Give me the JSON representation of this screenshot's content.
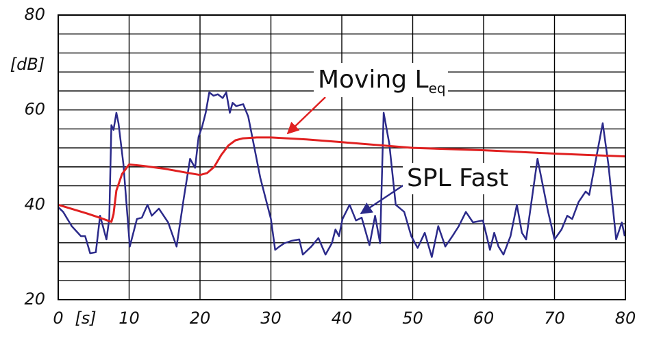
{
  "chart_data": {
    "type": "line",
    "xlabel": "[s]",
    "ylabel": "[dB]",
    "xlim": [
      0,
      80
    ],
    "ylim": [
      20,
      80
    ],
    "xticks": [
      0,
      10,
      20,
      30,
      40,
      50,
      60,
      70,
      80
    ],
    "yticks": [
      20,
      40,
      60,
      80
    ],
    "ygrid": [
      20,
      24,
      28,
      32,
      36,
      40,
      44,
      48,
      52,
      56,
      60,
      64,
      68,
      72,
      76,
      80
    ],
    "grid": true,
    "annotations": [
      {
        "text": "Moving L",
        "subscript": "eq",
        "color": "#e02020"
      },
      {
        "text": "SPL Fast",
        "color": "#2b2a8a"
      }
    ],
    "series": [
      {
        "name": "SPL Fast",
        "color": "#2b2a8a",
        "x": [
          0,
          0.7,
          1.9,
          3.2,
          3.8,
          4.5,
          5.3,
          5.9,
          6.3,
          6.8,
          7.2,
          7.5,
          7.8,
          8.2,
          8.5,
          9.2,
          10.1,
          11.1,
          11.8,
          12.6,
          13.2,
          14.2,
          15.5,
          16.7,
          17.7,
          18.6,
          19.3,
          19.8,
          20.3,
          20.8,
          21.3,
          21.9,
          22.5,
          23.2,
          23.7,
          24.2,
          24.6,
          25.1,
          26.1,
          26.8,
          28.5,
          30,
          30.6,
          31.2,
          31.9,
          32.9,
          34,
          34.5,
          35.7,
          36.7,
          37.7,
          38.6,
          39.1,
          39.6,
          40.1,
          41.1,
          42,
          42.8,
          43.9,
          44.7,
          45.4,
          45.9,
          46.7,
          47.6,
          48.8,
          49.8,
          50.7,
          51.7,
          52.7,
          53.6,
          54.6,
          55.6,
          56.5,
          57.5,
          58.5,
          59.9,
          60.9,
          61.5,
          62.1,
          62.8,
          63.8,
          64.7,
          65.4,
          66,
          67.6,
          69.1,
          70,
          71,
          71.8,
          72.5,
          73.4,
          74.4,
          74.9,
          76.8,
          77.6,
          78.7,
          79.5,
          79.9
        ],
        "values": [
          39.5,
          38.5,
          35.5,
          33.4,
          33.4,
          29.8,
          30,
          37.7,
          35.5,
          32.7,
          37,
          56.8,
          55.8,
          59.4,
          57.2,
          48.5,
          31.2,
          37,
          37.3,
          40,
          37.7,
          39.2,
          36.3,
          31.2,
          41.3,
          49.7,
          47.8,
          54.3,
          56.5,
          59.4,
          63.7,
          63,
          63.3,
          62.5,
          63.7,
          59.4,
          61.5,
          60.8,
          61.2,
          58.6,
          45.7,
          37,
          30.5,
          31.2,
          31.9,
          32.4,
          32.7,
          29.5,
          31.2,
          33,
          29.5,
          31.9,
          34.8,
          33.4,
          37,
          40,
          36.7,
          37.3,
          31.5,
          37.7,
          31.9,
          59.4,
          52.9,
          40,
          38.5,
          33.4,
          30.9,
          34.1,
          29,
          35.5,
          31.2,
          33.4,
          35.5,
          38.5,
          36.3,
          36.7,
          30.5,
          34.1,
          31.2,
          29.5,
          33.4,
          40,
          34.1,
          32.7,
          49.7,
          38.5,
          32.7,
          34.8,
          37.7,
          37,
          40.6,
          42.8,
          42.1,
          57.2,
          48.5,
          32.7,
          36.3,
          33.4
        ]
      },
      {
        "name": "Moving Leq",
        "color": "#e02020",
        "x": [
          0,
          2,
          4,
          6,
          7.5,
          7.8,
          8.2,
          9,
          10,
          12,
          15,
          18,
          20,
          21,
          22,
          23,
          24,
          25,
          26,
          28,
          30,
          35,
          40,
          50,
          60,
          70,
          80
        ],
        "values": [
          40,
          39.1,
          38.2,
          37.2,
          36.4,
          38,
          43,
          46.5,
          48.5,
          48.2,
          47.6,
          46.8,
          46.3,
          46.7,
          48,
          50.5,
          52.5,
          53.6,
          54,
          54.2,
          54.2,
          53.8,
          53.2,
          52,
          51.5,
          50.8,
          50.2
        ]
      }
    ]
  }
}
